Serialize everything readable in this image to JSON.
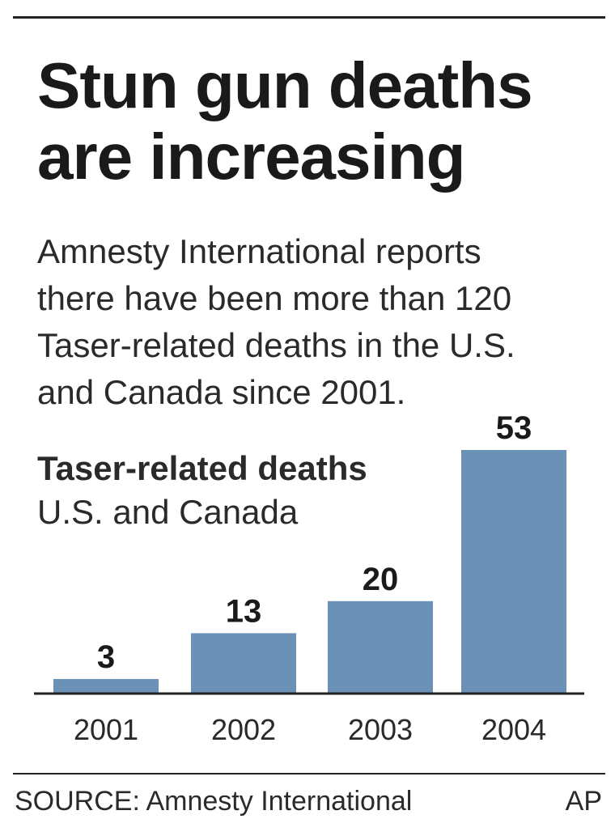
{
  "graphic": {
    "headline_lines": [
      "Stun gun deaths",
      "are increasing"
    ],
    "description_lines": [
      "Amnesty International reports",
      "there have been more than 120",
      "Taser-related deaths in the U.S.",
      "and Canada since 2001."
    ],
    "source": "SOURCE: Amnesty International",
    "credit": "AP"
  },
  "chart_data": {
    "type": "bar",
    "title": "Taser-related deaths",
    "subtitle": "U.S. and Canada",
    "categories": [
      "2001",
      "2002",
      "2003",
      "2004"
    ],
    "values": [
      3,
      13,
      20,
      53
    ],
    "data_labels": [
      "3",
      "13",
      "20",
      "53"
    ],
    "ylim": [
      0,
      53
    ],
    "grid": false,
    "legend": "none",
    "bar_color": "#6c91b7",
    "axis_color": "#222222"
  }
}
